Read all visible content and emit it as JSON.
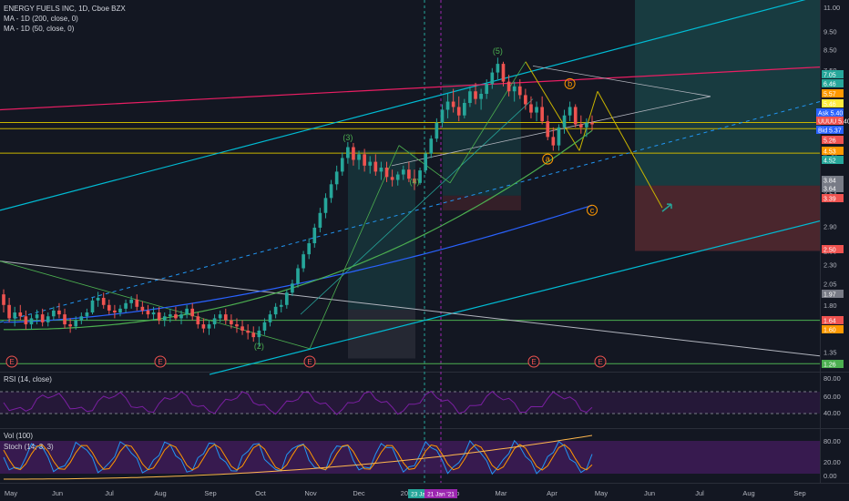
{
  "header": {
    "symbol_line": "ENERGY FUELS INC, 1D, Cboe BZX",
    "ma200_line": "MA - 1D (200, close, 0)",
    "ma50_line": "MA - 1D (50, close, 0)"
  },
  "rsi_pane": {
    "label": "RSI (14, close)",
    "ticks": [
      "80.00",
      "60.00",
      "40.00"
    ]
  },
  "stoch_pane": {
    "vol_label": "Vol (100)",
    "stoch_label": "Stoch (14, 3, 3)",
    "ticks": [
      "80.00",
      "20.00",
      "0.00"
    ]
  },
  "colors": {
    "background": "#131722",
    "up": "#26a69a",
    "down": "#ef5350",
    "channel": "#00bcd4",
    "ma200": "#2962ff",
    "ma50": "#4caf50",
    "rsi": "#7b1fa2",
    "stoch_k": "#2196f3",
    "stoch_d": "#ff9800"
  },
  "chart_data": {
    "type": "candlestick",
    "x_ticks": [
      "May",
      "Jun",
      "Jul",
      "Aug",
      "Sep",
      "Oct",
      "Nov",
      "Dec",
      "2021",
      "Feb",
      "Mar",
      "Apr",
      "May",
      "Jun",
      "Jul",
      "Aug",
      "Sep"
    ],
    "crosshair_date_labels": [
      "23 Jan '21",
      "21 Jan '21"
    ],
    "y_scale": "log",
    "y_ticks": [
      "11.00",
      "9.50",
      "8.50",
      "7.50",
      "6.50",
      "5.50",
      "4.50",
      "3.54",
      "2.90",
      "2.50",
      "2.30",
      "2.05",
      "1.80",
      "1.35"
    ],
    "price_tags": [
      {
        "text": "7.05",
        "color": "#26a69a"
      },
      {
        "text": "6.46",
        "color": "#26a69a"
      },
      {
        "text": "5.57",
        "color": "#ff9800"
      },
      {
        "text": "5.46",
        "color": "#ffeb3b"
      },
      {
        "text": "Ask 5.40",
        "color": "#2962ff"
      },
      {
        "text": "UUUU 5.40",
        "color": "#ef5350"
      },
      {
        "text": "Bid 5.37",
        "color": "#2962ff"
      },
      {
        "text": "5.26",
        "color": "#ef5350"
      },
      {
        "text": "4.53",
        "color": "#ff9800"
      },
      {
        "text": "4.52",
        "color": "#26a69a"
      },
      {
        "text": "3.84",
        "color": "#787b86"
      },
      {
        "text": "3.64",
        "color": "#787b86"
      },
      {
        "text": "3.39",
        "color": "#ef5350"
      },
      {
        "text": "2.50",
        "color": "#ef5350"
      },
      {
        "text": "1.97",
        "color": "#787b86"
      },
      {
        "text": "1.64",
        "color": "#ef5350"
      },
      {
        "text": "1.60",
        "color": "#ff9800"
      },
      {
        "text": "1.26",
        "color": "#4caf50"
      }
    ],
    "wave_labels": [
      {
        "label": "(2)",
        "date_index": 46,
        "price": 1.38
      },
      {
        "label": "(3)",
        "date_index": 62,
        "price": 4.9
      },
      {
        "label": "(4)",
        "date_index": 74,
        "price": 3.75
      },
      {
        "label": "(5)",
        "date_index": 89,
        "price": 8.3
      },
      {
        "label": "a",
        "date_index": 98,
        "price": 4.3
      },
      {
        "label": "b",
        "date_index": 102,
        "price": 6.8
      },
      {
        "label": "c",
        "date_index": 114,
        "price": 3.15
      }
    ],
    "earnings_markers": [
      "E",
      "E",
      "E",
      "E",
      "E"
    ],
    "ma200_line": {
      "from": 1.62,
      "to": 3.3
    },
    "ma50_line": {
      "from": 1.55,
      "to": 5.2
    },
    "ohlc": [
      [
        1.92,
        1.98,
        1.72,
        1.8
      ],
      [
        1.8,
        1.88,
        1.62,
        1.66
      ],
      [
        1.66,
        1.78,
        1.58,
        1.72
      ],
      [
        1.72,
        1.8,
        1.64,
        1.68
      ],
      [
        1.68,
        1.74,
        1.55,
        1.6
      ],
      [
        1.6,
        1.7,
        1.55,
        1.66
      ],
      [
        1.66,
        1.75,
        1.6,
        1.7
      ],
      [
        1.7,
        1.76,
        1.58,
        1.62
      ],
      [
        1.62,
        1.72,
        1.58,
        1.68
      ],
      [
        1.68,
        1.78,
        1.64,
        1.74
      ],
      [
        1.74,
        1.82,
        1.66,
        1.7
      ],
      [
        1.7,
        1.76,
        1.56,
        1.6
      ],
      [
        1.6,
        1.66,
        1.52,
        1.58
      ],
      [
        1.58,
        1.68,
        1.55,
        1.64
      ],
      [
        1.64,
        1.72,
        1.6,
        1.68
      ],
      [
        1.68,
        1.76,
        1.64,
        1.72
      ],
      [
        1.72,
        1.88,
        1.7,
        1.85
      ],
      [
        1.85,
        1.95,
        1.78,
        1.88
      ],
      [
        1.88,
        1.94,
        1.76,
        1.8
      ],
      [
        1.8,
        1.86,
        1.7,
        1.74
      ],
      [
        1.74,
        1.8,
        1.66,
        1.72
      ],
      [
        1.72,
        1.8,
        1.68,
        1.76
      ],
      [
        1.76,
        1.86,
        1.72,
        1.82
      ],
      [
        1.82,
        1.9,
        1.76,
        1.86
      ],
      [
        1.86,
        1.92,
        1.74,
        1.78
      ],
      [
        1.78,
        1.84,
        1.7,
        1.74
      ],
      [
        1.74,
        1.8,
        1.66,
        1.7
      ],
      [
        1.7,
        1.78,
        1.64,
        1.72
      ],
      [
        1.72,
        1.78,
        1.6,
        1.64
      ],
      [
        1.64,
        1.72,
        1.58,
        1.68
      ],
      [
        1.68,
        1.76,
        1.62,
        1.7
      ],
      [
        1.7,
        1.78,
        1.64,
        1.66
      ],
      [
        1.66,
        1.74,
        1.6,
        1.7
      ],
      [
        1.7,
        1.8,
        1.66,
        1.76
      ],
      [
        1.76,
        1.82,
        1.64,
        1.68
      ],
      [
        1.68,
        1.72,
        1.56,
        1.6
      ],
      [
        1.6,
        1.66,
        1.52,
        1.56
      ],
      [
        1.56,
        1.64,
        1.5,
        1.6
      ],
      [
        1.6,
        1.7,
        1.56,
        1.66
      ],
      [
        1.66,
        1.74,
        1.62,
        1.7
      ],
      [
        1.7,
        1.76,
        1.6,
        1.64
      ],
      [
        1.64,
        1.7,
        1.56,
        1.6
      ],
      [
        1.6,
        1.66,
        1.52,
        1.58
      ],
      [
        1.58,
        1.64,
        1.5,
        1.54
      ],
      [
        1.54,
        1.6,
        1.46,
        1.52
      ],
      [
        1.52,
        1.58,
        1.44,
        1.48
      ],
      [
        1.48,
        1.58,
        1.4,
        1.54
      ],
      [
        1.54,
        1.66,
        1.5,
        1.62
      ],
      [
        1.62,
        1.74,
        1.58,
        1.7
      ],
      [
        1.7,
        1.82,
        1.66,
        1.78
      ],
      [
        1.78,
        1.86,
        1.72,
        1.8
      ],
      [
        1.8,
        1.98,
        1.76,
        1.94
      ],
      [
        1.94,
        2.1,
        1.9,
        2.05
      ],
      [
        2.05,
        2.3,
        2.0,
        2.25
      ],
      [
        2.25,
        2.5,
        2.2,
        2.45
      ],
      [
        2.45,
        2.7,
        2.38,
        2.62
      ],
      [
        2.62,
        2.95,
        2.55,
        2.88
      ],
      [
        2.88,
        3.25,
        2.8,
        3.15
      ],
      [
        3.15,
        3.55,
        3.05,
        3.45
      ],
      [
        3.45,
        3.85,
        3.35,
        3.75
      ],
      [
        3.75,
        4.2,
        3.62,
        4.05
      ],
      [
        4.05,
        4.55,
        3.95,
        4.4
      ],
      [
        4.4,
        4.85,
        4.25,
        4.7
      ],
      [
        4.7,
        4.82,
        4.2,
        4.35
      ],
      [
        4.35,
        4.6,
        4.1,
        4.5
      ],
      [
        4.5,
        4.65,
        4.05,
        4.2
      ],
      [
        4.2,
        4.45,
        4.0,
        4.3
      ],
      [
        4.3,
        4.5,
        3.95,
        4.05
      ],
      [
        4.05,
        4.3,
        3.85,
        4.15
      ],
      [
        4.15,
        4.3,
        3.8,
        3.92
      ],
      [
        3.92,
        4.1,
        3.7,
        3.85
      ],
      [
        3.85,
        4.05,
        3.72,
        3.98
      ],
      [
        3.98,
        4.2,
        3.85,
        4.1
      ],
      [
        4.1,
        4.3,
        3.8,
        3.88
      ],
      [
        3.88,
        4.1,
        3.62,
        3.78
      ],
      [
        3.78,
        4.15,
        3.74,
        4.08
      ],
      [
        4.08,
        4.6,
        4.0,
        4.52
      ],
      [
        4.52,
        5.05,
        4.4,
        4.95
      ],
      [
        4.95,
        5.6,
        4.85,
        5.45
      ],
      [
        5.45,
        6.1,
        5.3,
        5.9
      ],
      [
        5.9,
        6.5,
        5.6,
        6.2
      ],
      [
        6.2,
        6.7,
        5.8,
        6.0
      ],
      [
        6.0,
        6.4,
        5.5,
        5.7
      ],
      [
        5.7,
        6.3,
        5.6,
        6.15
      ],
      [
        6.15,
        6.8,
        6.0,
        6.6
      ],
      [
        6.6,
        6.95,
        6.1,
        6.3
      ],
      [
        6.3,
        6.7,
        5.9,
        6.5
      ],
      [
        6.5,
        7.1,
        6.3,
        6.9
      ],
      [
        6.9,
        7.6,
        6.7,
        7.4
      ],
      [
        7.4,
        8.1,
        7.1,
        7.8
      ],
      [
        7.8,
        7.9,
        6.8,
        7.0
      ],
      [
        7.0,
        7.3,
        6.4,
        6.6
      ],
      [
        6.6,
        7.0,
        6.2,
        6.8
      ],
      [
        6.8,
        7.1,
        6.3,
        6.45
      ],
      [
        6.45,
        6.7,
        5.9,
        6.1
      ],
      [
        6.1,
        6.4,
        5.6,
        5.8
      ],
      [
        5.8,
        6.2,
        5.5,
        6.0
      ],
      [
        6.0,
        6.4,
        5.4,
        5.5
      ],
      [
        5.5,
        5.7,
        4.9,
        5.0
      ],
      [
        5.0,
        5.3,
        4.6,
        4.75
      ],
      [
        4.75,
        5.4,
        4.6,
        5.3
      ],
      [
        5.3,
        5.9,
        5.1,
        5.7
      ],
      [
        5.7,
        6.2,
        5.5,
        6.0
      ],
      [
        6.0,
        6.1,
        5.3,
        5.4
      ],
      [
        5.4,
        5.7,
        5.1,
        5.3
      ],
      [
        5.3,
        5.6,
        5.0,
        5.45
      ],
      [
        5.45,
        5.7,
        5.2,
        5.4
      ]
    ]
  }
}
